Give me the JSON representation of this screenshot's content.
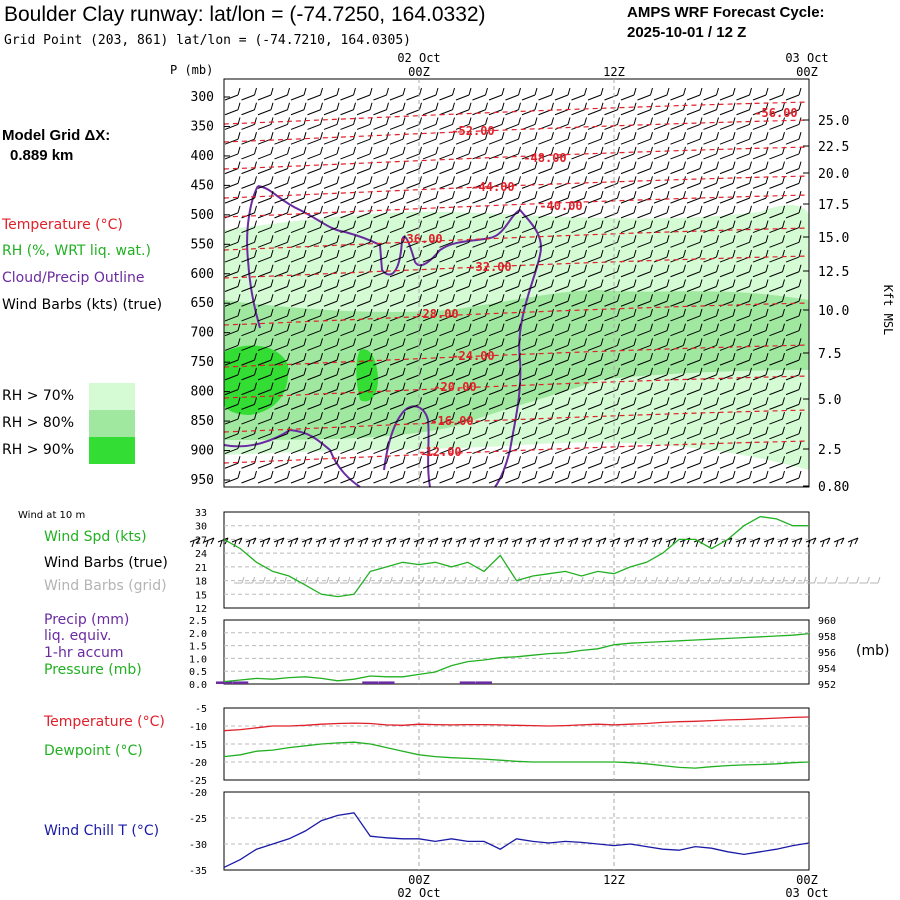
{
  "header": {
    "title": "Boulder Clay runway:  lat/lon = (-74.7250, 164.0332)",
    "subtitle": "Grid Point (203, 861) lat/lon = (-74.7210, 164.0305)",
    "cycle_line1": "AMPS WRF Forecast Cycle:",
    "cycle_line2": "2025-10-01 / 12  Z"
  },
  "left_legend": {
    "grid_dx_line1": "Model Grid ΔX:",
    "grid_dx_line2": "0.889 km",
    "temperature": "Temperature (°C)",
    "rh": "RH (%, WRT liq. wat.)",
    "cloud": "Cloud/Precip Outline",
    "wind": "Wind Barbs (kts) (true)",
    "rh70": "RH > 70%",
    "rh80": "RH > 80%",
    "rh90": "RH > 90%",
    "rh70_color": "#d4fbd4",
    "rh80_color": "#a0e8a0",
    "rh90_color": "#33dd33"
  },
  "time_axis": {
    "top_date_mid": "02 Oct",
    "top_date_right": "03 Oct",
    "labels": [
      "00Z",
      "12Z",
      "00Z"
    ],
    "bottom_date_mid": "02 Oct",
    "bottom_date_right": "03 Oct"
  },
  "side_labels": {
    "wind_at_10m": "Wind at 10 m",
    "wind_spd": "Wind Spd (kts)",
    "barbs_true": "Wind Barbs (true)",
    "barbs_grid": "Wind Barbs (grid)",
    "precip": "Precip (mm)",
    "liq": "liq. equiv.",
    "accum": "1-hr accum",
    "pressure": "Pressure (mb)",
    "mb_unit": "(mb)",
    "temperature": "Temperature (°C)",
    "dewpoint": "Dewpoint (°C)",
    "windchill": "Wind Chill T (°C)"
  },
  "colors": {
    "temperature": "#e0202a",
    "green": "#22b022",
    "purple": "#6a2ba0",
    "blue": "#1a1aa8",
    "grid_barb": "#b4b4b4"
  },
  "chart_data": [
    {
      "type": "time-height cross section",
      "title": "",
      "pressure_axis_label": "P (mb)",
      "pressure_levels": [
        "300",
        "350",
        "400",
        "450",
        "500",
        "550",
        "600",
        "650",
        "700",
        "750",
        "800",
        "850",
        "900",
        "950"
      ],
      "height_axis_label": "Kft MSL",
      "height_ticks": [
        "25.0",
        "22.5",
        "20.0",
        "17.5",
        "15.0",
        "12.5",
        "10.0",
        "7.5",
        "5.0",
        "2.5",
        "0.80"
      ],
      "temperature_contours": [
        "-56.00",
        "-52.00",
        "-48.00",
        "-44.00",
        "-40.00",
        "-36.00",
        "-32.00",
        "-28.00",
        "-24.00",
        "-20.00",
        "-16.00",
        "-12.00"
      ],
      "forecast_hours": [
        0,
        36
      ]
    },
    {
      "type": "line",
      "name": "Wind Spd (kts)",
      "hours": [
        0,
        1,
        2,
        3,
        4,
        5,
        6,
        7,
        8,
        9,
        10,
        11,
        12,
        13,
        14,
        15,
        16,
        17,
        18,
        19,
        20,
        21,
        22,
        23,
        24,
        25,
        26,
        27,
        28,
        29,
        30,
        31,
        32,
        33,
        34,
        35,
        36
      ],
      "values": [
        27,
        25,
        22,
        20,
        19,
        17,
        15,
        14.5,
        15,
        20,
        21,
        22,
        21.5,
        22,
        21,
        22,
        20,
        23.5,
        18,
        19,
        19.5,
        20,
        19,
        20,
        19.5,
        21,
        22,
        24,
        27,
        27,
        25,
        27,
        30,
        32,
        31.5,
        30,
        30
      ],
      "ylim": [
        12,
        33
      ],
      "yticks": [
        "33",
        "30",
        "27",
        "24",
        "21",
        "18",
        "15",
        "12"
      ]
    },
    {
      "type": "line+bar",
      "name": "Precip (mm) / Pressure (mb)",
      "hours": [
        0,
        1,
        2,
        3,
        4,
        5,
        6,
        7,
        8,
        9,
        10,
        11,
        12,
        13,
        14,
        15,
        16,
        17,
        18,
        19,
        20,
        21,
        22,
        23,
        24,
        25,
        26,
        27,
        28,
        29,
        30,
        31,
        32,
        33,
        34,
        35,
        36
      ],
      "pressure_mb": [
        952.3,
        952.5,
        952.7,
        952.6,
        952.8,
        952.9,
        952.7,
        952.4,
        952.6,
        953.0,
        952.9,
        952.9,
        953.2,
        953.5,
        954.3,
        954.8,
        955.0,
        955.3,
        955.4,
        955.6,
        955.8,
        955.9,
        956.2,
        956.4,
        956.9,
        957.1,
        957.2,
        957.3,
        957.4,
        957.5,
        957.6,
        957.7,
        957.8,
        957.9,
        958.0,
        958.1,
        958.3
      ],
      "precip_mm": [
        0.1,
        0.1,
        0,
        0,
        0,
        0,
        0,
        0,
        0,
        0.1,
        0.1,
        0,
        0,
        0,
        0,
        0.1,
        0.1,
        0,
        0,
        0,
        0,
        0,
        0,
        0,
        0,
        0,
        0,
        0,
        0,
        0,
        0,
        0,
        0,
        0,
        0,
        0,
        0
      ],
      "precip_ylim": [
        0,
        2.5
      ],
      "precip_yticks": [
        "2.5",
        "2.0",
        "1.5",
        "1.0",
        "0.5",
        "0.0"
      ],
      "pressure_ylim": [
        952,
        960
      ],
      "pressure_yticks": [
        "960",
        "958",
        "956",
        "954",
        "952"
      ]
    },
    {
      "type": "line",
      "name": "Temperature / Dewpoint (°C)",
      "hours": [
        0,
        1,
        2,
        3,
        4,
        5,
        6,
        7,
        8,
        9,
        10,
        11,
        12,
        13,
        14,
        15,
        16,
        17,
        18,
        19,
        20,
        21,
        22,
        23,
        24,
        25,
        26,
        27,
        28,
        29,
        30,
        31,
        32,
        33,
        34,
        35,
        36
      ],
      "temperature": [
        -11.3,
        -11,
        -10.5,
        -10,
        -10,
        -9.8,
        -9.5,
        -9.3,
        -9.2,
        -9.3,
        -9.7,
        -9.8,
        -9.5,
        -9.6,
        -9.7,
        -9.6,
        -9.6,
        -9.7,
        -9.8,
        -9.9,
        -10,
        -9.9,
        -9.7,
        -9.5,
        -9.7,
        -9.5,
        -9.3,
        -9,
        -8.8,
        -8.7,
        -8.5,
        -8.3,
        -8.2,
        -8.0,
        -7.8,
        -7.6,
        -7.5
      ],
      "dewpoint": [
        -18.5,
        -18,
        -17,
        -16.7,
        -16,
        -15.5,
        -15,
        -14.7,
        -14.5,
        -15,
        -16,
        -17,
        -18,
        -18.5,
        -18.8,
        -19,
        -19.2,
        -19.5,
        -19.8,
        -20,
        -20,
        -20,
        -20,
        -20,
        -20,
        -20.2,
        -20.5,
        -21,
        -21.5,
        -21.7,
        -21.3,
        -21,
        -20.8,
        -20.7,
        -20.5,
        -20.2,
        -20
      ],
      "ylim": [
        -25,
        -5
      ],
      "yticks": [
        "-5",
        "-10",
        "-15",
        "-20",
        "-25"
      ]
    },
    {
      "type": "line",
      "name": "Wind Chill T (°C)",
      "hours": [
        0,
        1,
        2,
        3,
        4,
        5,
        6,
        7,
        8,
        9,
        10,
        11,
        12,
        13,
        14,
        15,
        16,
        17,
        18,
        19,
        20,
        21,
        22,
        23,
        24,
        25,
        26,
        27,
        28,
        29,
        30,
        31,
        32,
        33,
        34,
        35,
        36
      ],
      "values": [
        -34.5,
        -33,
        -31,
        -30,
        -29,
        -27.5,
        -25.5,
        -24.5,
        -24,
        -28.5,
        -28.8,
        -29,
        -29,
        -29.5,
        -29,
        -29.5,
        -29.5,
        -31,
        -29,
        -29.5,
        -29.8,
        -29.5,
        -29.7,
        -30,
        -30.3,
        -30,
        -30.5,
        -31,
        -31.2,
        -30.5,
        -30.8,
        -31.5,
        -32,
        -31.5,
        -31,
        -30.3,
        -29.8
      ],
      "ylim": [
        -35,
        -20
      ],
      "yticks": [
        "-20",
        "-25",
        "-30",
        "-35"
      ]
    }
  ]
}
